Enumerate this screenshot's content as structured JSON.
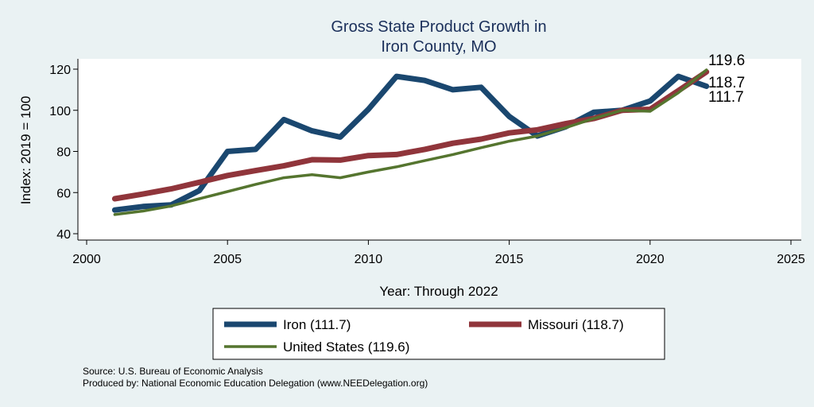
{
  "chart_data": {
    "type": "line",
    "title_line1": "Gross State Product Growth in",
    "title_line2": "Iron County, MO",
    "xlabel": "Year: Through 2022",
    "ylabel": "Index: 2019 = 100",
    "xlim": [
      2000,
      2025
    ],
    "ylim": [
      38,
      123
    ],
    "xticks": [
      2000,
      2005,
      2010,
      2015,
      2020,
      2025
    ],
    "yticks": [
      40,
      60,
      80,
      100,
      120
    ],
    "grid": false,
    "legend_position": "bottom",
    "x": [
      2001,
      2002,
      2003,
      2004,
      2005,
      2006,
      2007,
      2008,
      2009,
      2010,
      2011,
      2012,
      2013,
      2014,
      2015,
      2016,
      2017,
      2018,
      2019,
      2020,
      2021,
      2022
    ],
    "series": [
      {
        "name": "Iron",
        "legend_label": "Iron  (111.7)",
        "color": "#1a476f",
        "values": [
          51.5,
          53.2,
          54.0,
          61.0,
          80.0,
          81.0,
          95.5,
          90.0,
          87.0,
          100.5,
          116.5,
          114.5,
          110.0,
          111.2,
          97.0,
          87.5,
          92.0,
          99.0,
          100.0,
          104.5,
          116.5,
          111.7
        ]
      },
      {
        "name": "Missouri",
        "legend_label": "Missouri (118.7)",
        "color": "#90353b",
        "values": [
          57.0,
          59.3,
          61.8,
          65.0,
          68.3,
          70.7,
          73.0,
          76.0,
          75.8,
          78.0,
          78.5,
          81.0,
          84.0,
          86.0,
          89.0,
          90.5,
          93.5,
          96.0,
          100.0,
          100.5,
          109.5,
          118.7
        ]
      },
      {
        "name": "United States",
        "legend_label": "United States (119.6)",
        "color": "#55752f",
        "values": [
          49.3,
          51.0,
          53.5,
          57.0,
          60.5,
          64.0,
          67.2,
          68.7,
          67.2,
          70.0,
          72.5,
          75.5,
          78.5,
          81.8,
          85.0,
          87.5,
          91.5,
          96.0,
          100.0,
          99.5,
          108.5,
          119.6
        ]
      }
    ],
    "end_labels": [
      "119.6",
      "118.7",
      "111.7"
    ]
  },
  "footer": {
    "source": "Source: U.S. Bureau of Economic Analysis",
    "produced_by": "Produced by: National Economic Education Delegation (www.NEEDelegation.org)"
  }
}
